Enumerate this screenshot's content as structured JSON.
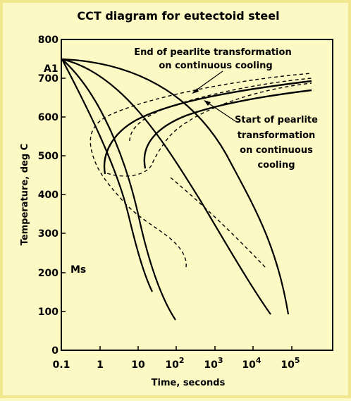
{
  "diagram": {
    "title": "CCT diagram for eutectoid steel",
    "xlabel": "Time, seconds",
    "ylabel": "Temperature, deg C",
    "x_ticks": [
      {
        "base": "0.1",
        "exp": ""
      },
      {
        "base": "1",
        "exp": ""
      },
      {
        "base": "10",
        "exp": ""
      },
      {
        "base": "10",
        "exp": "2"
      },
      {
        "base": "10",
        "exp": "3"
      },
      {
        "base": "10",
        "exp": "4"
      },
      {
        "base": "10",
        "exp": "5"
      }
    ],
    "y_ticks": [
      "800",
      "700",
      "600",
      "500",
      "400",
      "300",
      "200",
      "100",
      "0"
    ],
    "labels": {
      "a1": "A1",
      "ms": "Ms",
      "end_line1": "End of pearlite transformation",
      "end_line2": "on continuous cooling",
      "start_line1": "Start of pearlite",
      "start_line2": "transformation",
      "start_line3": "on continuous",
      "start_line4": "cooling"
    }
  }
}
